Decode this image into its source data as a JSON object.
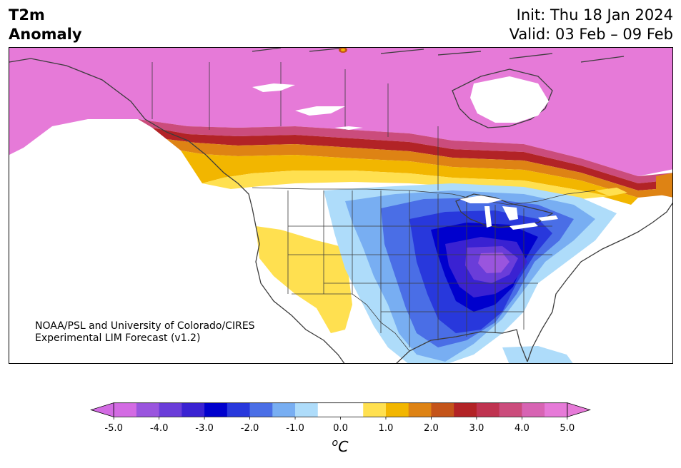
{
  "title": {
    "line1": "T2m",
    "line2": "Anomaly"
  },
  "init_label": "Init: Thu 18 Jan 2024",
  "valid_label": "Valid: 03 Feb – 09 Feb",
  "credit": {
    "line1": "NOAA/PSL and University of Colorado/CIRES",
    "line2": "Experimental LIM Forecast (v1.2)"
  },
  "colorbar": {
    "unit": "oC",
    "ticks": [
      "-5.0",
      "-4.0",
      "-3.0",
      "-2.0",
      "-1.0",
      "0.0",
      "1.0",
      "2.0",
      "3.0",
      "4.0",
      "5.0"
    ],
    "colors": [
      "#d36be3",
      "#9a55de",
      "#6a3dd9",
      "#3a22d2",
      "#0000cd",
      "#2838dc",
      "#4a6ee6",
      "#78aef2",
      "#aedcfa",
      "#ffffff",
      "#ffffff",
      "#ffe050",
      "#f2b600",
      "#de8314",
      "#c4541a",
      "#b22326",
      "#bf3350",
      "#cb4c7c",
      "#d764b3",
      "#e67ad8"
    ],
    "under_color": "#d36be3",
    "over_color": "#e67ad8"
  },
  "colors": {
    "land_outline": "#3c3c3c",
    "ocean": "#ffffff",
    "max_warm": "#e57ad9",
    "cold_core": "#0000cd"
  }
}
